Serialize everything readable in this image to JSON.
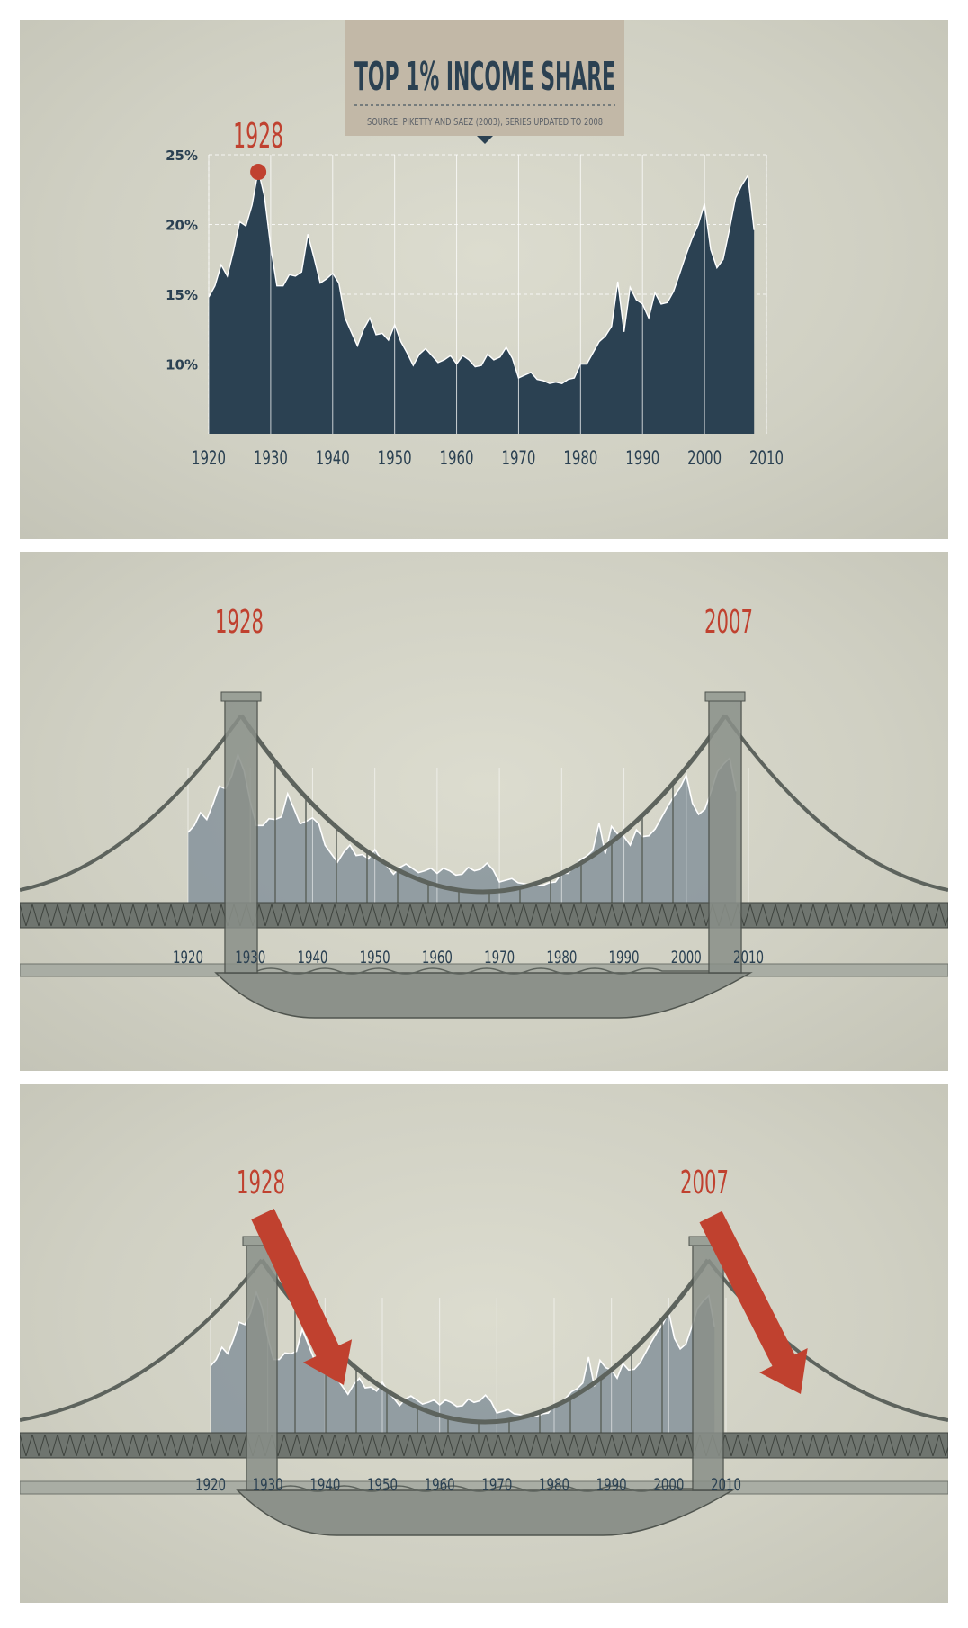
{
  "colors": {
    "area": "#2b4152",
    "accent": "#c0412f",
    "panel_bg": "#d5d5c8",
    "title_box": "#c2b8a7",
    "bridge": "#8a9089",
    "bridge_dark": "#5d635d",
    "ghost_area": "#7f8d97"
  },
  "chart_data": [
    {
      "type": "area",
      "title": "TOP 1% INCOME SHARE",
      "subtitle": "SOURCE: PIKETTY AND SAEZ (2003), SERIES UPDATED TO 2008",
      "y_ticks": [
        "25%",
        "20%",
        "15%",
        "10%"
      ],
      "y_tick_values": [
        25,
        20,
        15,
        10
      ],
      "ylim": [
        5,
        25
      ],
      "xlim": [
        1920,
        2010
      ],
      "x_ticks": [
        "1920",
        "1930",
        "1940",
        "1950",
        "1960",
        "1970",
        "1980",
        "1990",
        "2000",
        "2010"
      ],
      "x_tick_values": [
        1920,
        1930,
        1940,
        1950,
        1960,
        1970,
        1980,
        1990,
        2000,
        2010
      ],
      "grid": true,
      "annotations": [
        {
          "label": "1928",
          "x": 1928,
          "y": 23.9
        }
      ],
      "x": [
        1920,
        1921,
        1922,
        1923,
        1924,
        1925,
        1926,
        1927,
        1928,
        1929,
        1930,
        1931,
        1932,
        1933,
        1934,
        1935,
        1936,
        1937,
        1938,
        1939,
        1940,
        1941,
        1942,
        1943,
        1944,
        1945,
        1946,
        1947,
        1948,
        1949,
        1950,
        1951,
        1952,
        1953,
        1954,
        1955,
        1956,
        1957,
        1958,
        1959,
        1960,
        1961,
        1962,
        1963,
        1964,
        1965,
        1966,
        1967,
        1968,
        1969,
        1970,
        1971,
        1972,
        1973,
        1974,
        1975,
        1976,
        1977,
        1978,
        1979,
        1980,
        1981,
        1982,
        1983,
        1984,
        1985,
        1986,
        1987,
        1988,
        1989,
        1990,
        1991,
        1992,
        1993,
        1994,
        1995,
        1996,
        1997,
        1998,
        1999,
        2000,
        2001,
        2002,
        2003,
        2004,
        2005,
        2006,
        2007,
        2008
      ],
      "values": [
        14.8,
        15.6,
        17.1,
        16.3,
        18.1,
        20.2,
        19.9,
        21.4,
        23.9,
        22.0,
        18.4,
        15.6,
        15.6,
        16.4,
        16.3,
        16.6,
        19.3,
        17.6,
        15.8,
        16.1,
        16.5,
        15.8,
        13.3,
        12.3,
        11.3,
        12.5,
        13.3,
        12.1,
        12.2,
        11.7,
        12.8,
        11.6,
        10.8,
        9.9,
        10.7,
        11.1,
        10.6,
        10.1,
        10.3,
        10.6,
        10.0,
        10.6,
        10.3,
        9.8,
        9.9,
        10.7,
        10.3,
        10.5,
        11.2,
        10.4,
        9.0,
        9.2,
        9.4,
        8.9,
        8.8,
        8.6,
        8.7,
        8.6,
        8.9,
        9.0,
        10.0,
        10.0,
        10.8,
        11.6,
        12.0,
        12.7,
        15.9,
        12.3,
        15.5,
        14.6,
        14.3,
        13.3,
        15.1,
        14.3,
        14.4,
        15.2,
        16.5,
        17.8,
        19.0,
        20.0,
        21.5,
        18.2,
        16.9,
        17.5,
        19.6,
        21.9,
        22.8,
        23.5,
        19.6
      ]
    },
    {
      "type": "area",
      "annotations": [
        {
          "label": "1928",
          "x": 1928
        },
        {
          "label": "2007",
          "x": 2007
        }
      ],
      "x_ticks": [
        "1920",
        "1930",
        "1940",
        "1950",
        "1960",
        "1970",
        "1980",
        "1990",
        "2000",
        "2010"
      ]
    },
    {
      "type": "area",
      "annotations": [
        {
          "label": "1928",
          "x": 1928
        },
        {
          "label": "2007",
          "x": 2007
        }
      ],
      "x_ticks": [
        "1920",
        "1930",
        "1940",
        "1950",
        "1960",
        "1970",
        "1980",
        "1990",
        "2000",
        "2010"
      ]
    }
  ]
}
